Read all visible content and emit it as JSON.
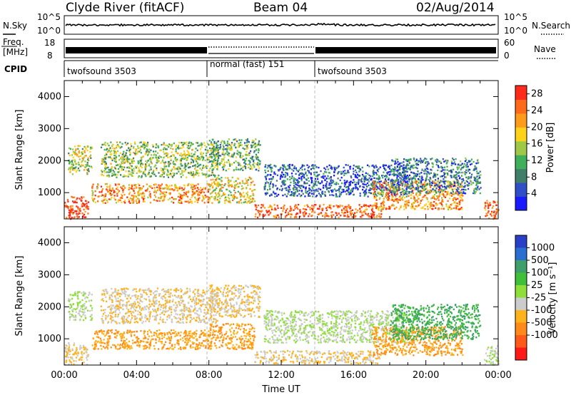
{
  "header": {
    "station": "Clyde River (fitACF)",
    "beam": "Beam 04",
    "date": "02/Aug/2014"
  },
  "noise_panel": {
    "left_label": "N.Sky",
    "right_label": "N.Search",
    "left_ticks": [
      "10^5",
      "10^0"
    ],
    "right_ticks": [
      "10^5",
      "10^0"
    ]
  },
  "freq_panel": {
    "left_label_top": "Freq.",
    "left_label_bottom": "[MHz]",
    "left_ticks": [
      "18",
      "8"
    ],
    "right_label": "Nave",
    "right_ticks": [
      "60",
      "0"
    ]
  },
  "cpid_panel": {
    "label": "CPID",
    "segments": [
      {
        "name": "twofsound 3503",
        "start_h": 0,
        "end_h": 8
      },
      {
        "name": "normal (fast) 151",
        "start_h": 8,
        "end_h": 14
      },
      {
        "name": "twofsound 3503",
        "start_h": 14,
        "end_h": 24
      }
    ]
  },
  "time_axis": {
    "ticks": [
      "00:00",
      "04:00",
      "08:00",
      "12:00",
      "16:00",
      "20:00",
      "00:00"
    ],
    "label": "Time UT"
  },
  "range_axis": {
    "label": "Slant Range [km]",
    "ticks": [
      "1000",
      "2000",
      "3000",
      "4000"
    ]
  },
  "colors": {
    "power": [
      "#1a1aff",
      "#2f4fc8",
      "#3f7f6a",
      "#3faf5a",
      "#a0c848",
      "#ffd21a",
      "#ff9a1a",
      "#ff6a1a",
      "#ff2a1a"
    ],
    "velocity": [
      "#2a3fc8",
      "#2a6fd0",
      "#3f9f6a",
      "#3fbf3a",
      "#8fdf3a",
      "#cccccc",
      "#ffb31a",
      "#ff8a1a",
      "#ff5a1a",
      "#ff1a1a"
    ]
  },
  "power_scale": {
    "title": "Power [dB]",
    "ticks": [
      "28",
      "24",
      "20",
      "16",
      "12",
      "8",
      "4"
    ]
  },
  "velocity_scale": {
    "title": "Velocity [m s⁻¹]",
    "ticks": [
      "1000",
      "500",
      "100",
      "25",
      "-25",
      "-100",
      "-500",
      "-1000"
    ]
  },
  "chart_data": {
    "type": "heatmap",
    "title": "Clyde River (fitACF) Beam 04 02/Aug/2014",
    "xlabel": "Time UT",
    "ylabel": "Slant Range [km]",
    "xlim_hours": [
      0,
      24
    ],
    "ylim_km": [
      180,
      4500
    ],
    "power_range_db": [
      0,
      30
    ],
    "velocity_range_ms": [
      -1000,
      1000
    ],
    "grid": false,
    "scatter_regions": [
      {
        "t0": 0.0,
        "t1": 1.3,
        "r0": 200,
        "r1": 900,
        "power_db": 28,
        "velocity": -100
      },
      {
        "t0": 0.2,
        "t1": 1.5,
        "r0": 1600,
        "r1": 2500,
        "power_db": 16,
        "velocity": -25
      },
      {
        "t0": 1.5,
        "t1": 8.0,
        "r0": 700,
        "r1": 1300,
        "power_db": 22,
        "velocity": -500
      },
      {
        "t0": 2.0,
        "t1": 8.5,
        "r0": 1500,
        "r1": 2600,
        "power_db": 14,
        "velocity": -100
      },
      {
        "t0": 8.0,
        "t1": 10.8,
        "r0": 1700,
        "r1": 2700,
        "power_db": 12,
        "velocity": -100
      },
      {
        "t0": 8.0,
        "t1": 10.5,
        "r0": 700,
        "r1": 1500,
        "power_db": 18,
        "velocity": -500
      },
      {
        "t0": 10.5,
        "t1": 17.5,
        "r0": 250,
        "r1": 650,
        "power_db": 26,
        "velocity": -100
      },
      {
        "t0": 11.0,
        "t1": 19.0,
        "r0": 900,
        "r1": 1900,
        "power_db": 6,
        "velocity": -25
      },
      {
        "t0": 17.0,
        "t1": 22.0,
        "r0": 500,
        "r1": 1400,
        "power_db": 22,
        "velocity": -500
      },
      {
        "t0": 18.0,
        "t1": 23.0,
        "r0": 1000,
        "r1": 2100,
        "power_db": 8,
        "velocity": 100
      },
      {
        "t0": 23.2,
        "t1": 24.0,
        "r0": 200,
        "r1": 800,
        "power_db": 26,
        "velocity": -25
      }
    ]
  }
}
